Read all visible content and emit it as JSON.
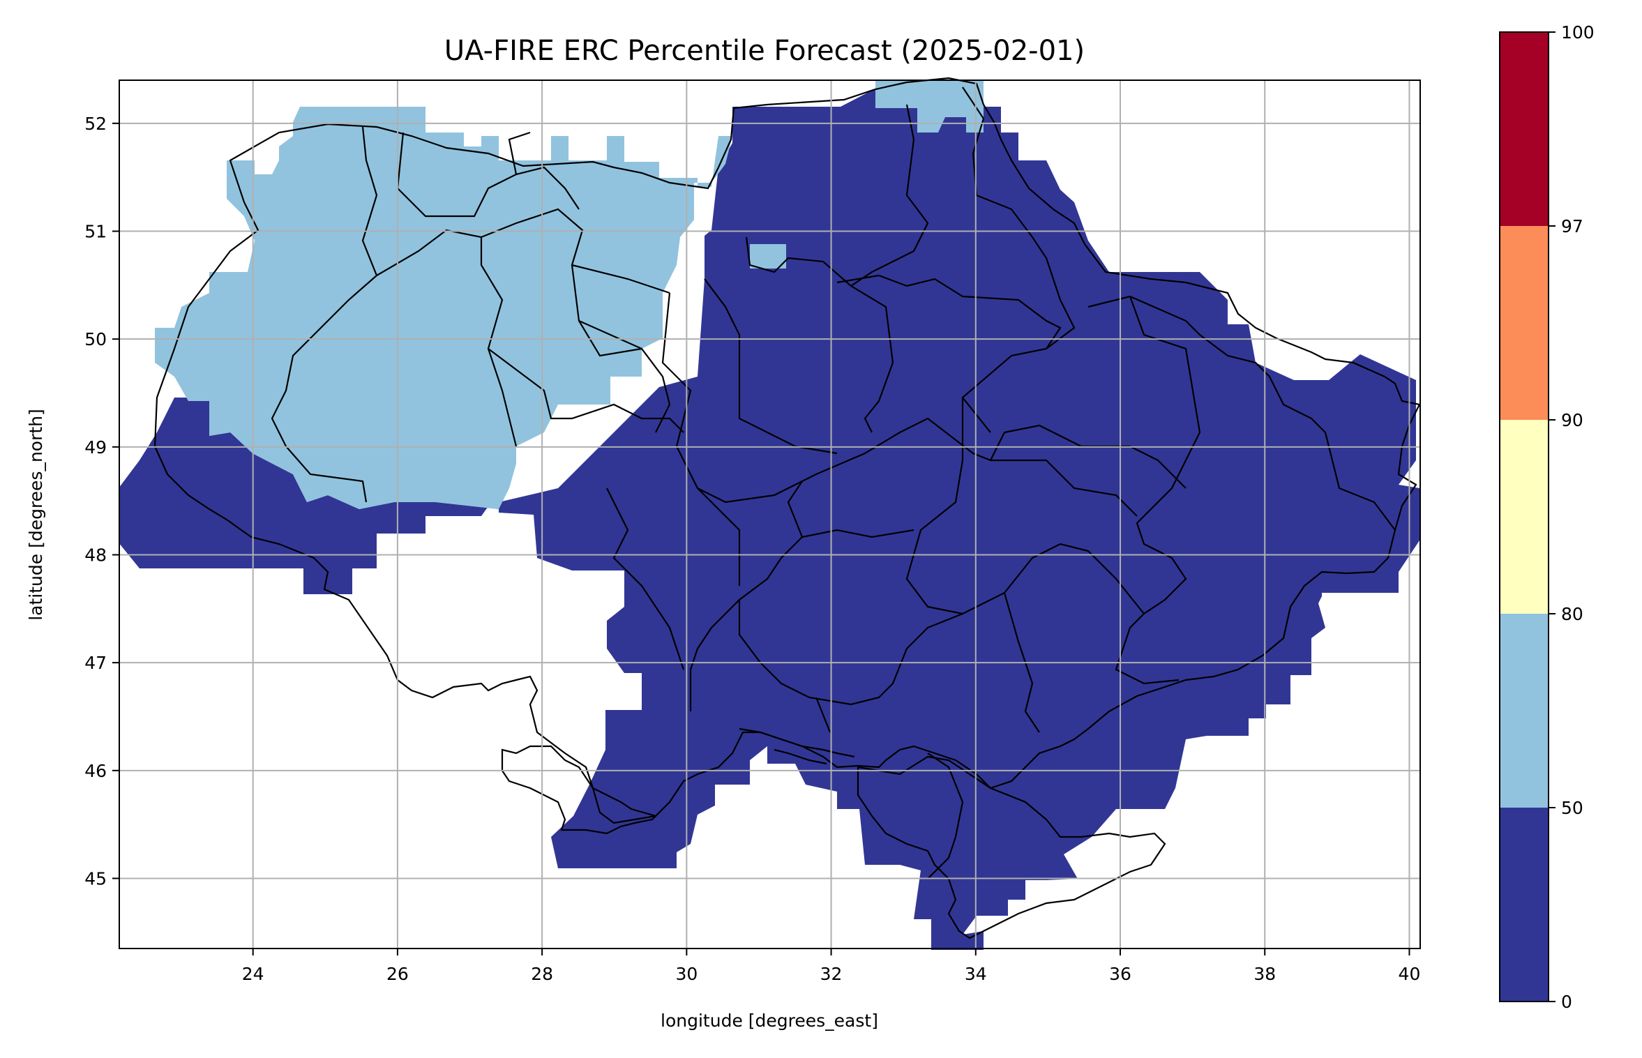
{
  "chart_data": {
    "type": "heatmap",
    "title": "UA-FIRE ERC Percentile Forecast (2025-02-01)",
    "xlabel": "longitude [degrees_east]",
    "ylabel": "latitude [degrees_north]",
    "xlim": [
      22.15,
      40.15
    ],
    "ylim": [
      44.35,
      52.4
    ],
    "x_ticks": [
      24,
      26,
      28,
      30,
      32,
      34,
      36,
      38,
      40
    ],
    "y_ticks": [
      45,
      46,
      47,
      48,
      49,
      50,
      51,
      52
    ],
    "grid": true,
    "colorbar": {
      "boundaries": [
        0,
        50,
        80,
        90,
        97,
        100
      ],
      "tick_labels": [
        "0",
        "50",
        "80",
        "90",
        "97",
        "100"
      ],
      "colors": [
        "#313695",
        "#91c3de",
        "#ffffbf",
        "#fc8d59",
        "#a50026"
      ]
    },
    "observed_classes": [
      {
        "range": [
          0,
          50
        ],
        "color": "#313695",
        "region": "central, eastern and southern Ukraine including Crimea"
      },
      {
        "range": [
          50,
          80
        ],
        "color": "#91c3de",
        "region": "north-western and western Ukraine"
      }
    ]
  }
}
